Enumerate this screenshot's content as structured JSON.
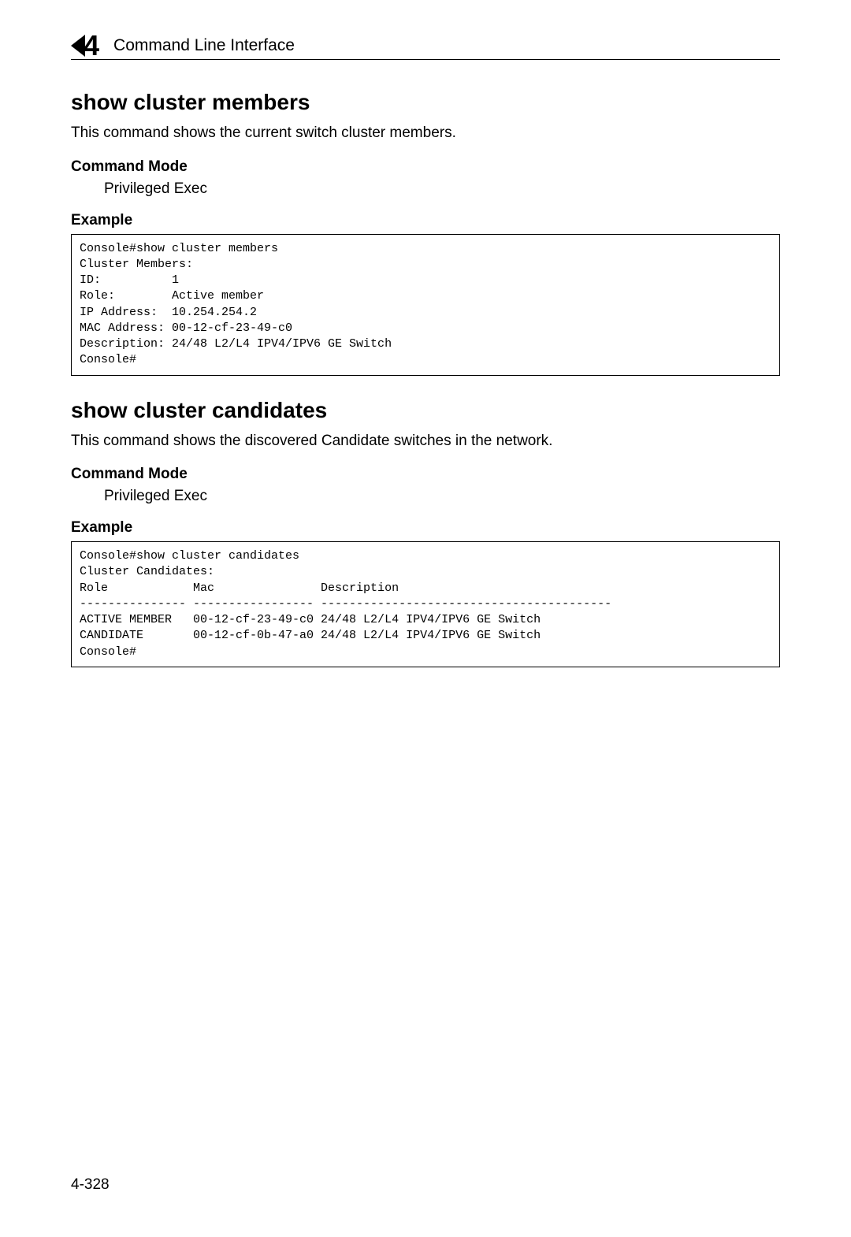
{
  "header": {
    "chapter_number": "4",
    "title": "Command Line Interface"
  },
  "sections": [
    {
      "heading": "show cluster members",
      "description": "This command shows the current switch cluster members.",
      "command_mode_label": "Command Mode",
      "command_mode_value": "Privileged Exec",
      "example_label": "Example",
      "code": "Console#show cluster members\nCluster Members:\nID:          1\nRole:        Active member\nIP Address:  10.254.254.2\nMAC Address: 00-12-cf-23-49-c0\nDescription: 24/48 L2/L4 IPV4/IPV6 GE Switch\nConsole#"
    },
    {
      "heading": "show cluster candidates",
      "description": "This command shows the discovered Candidate switches in the network.",
      "command_mode_label": "Command Mode",
      "command_mode_value": "Privileged Exec",
      "example_label": "Example",
      "code": "Console#show cluster candidates\nCluster Candidates:\nRole            Mac               Description\n--------------- ----------------- -----------------------------------------\nACTIVE MEMBER   00-12-cf-23-49-c0 24/48 L2/L4 IPV4/IPV6 GE Switch\nCANDIDATE       00-12-cf-0b-47-a0 24/48 L2/L4 IPV4/IPV6 GE Switch\nConsole#"
    }
  ],
  "page_number": "4-328"
}
